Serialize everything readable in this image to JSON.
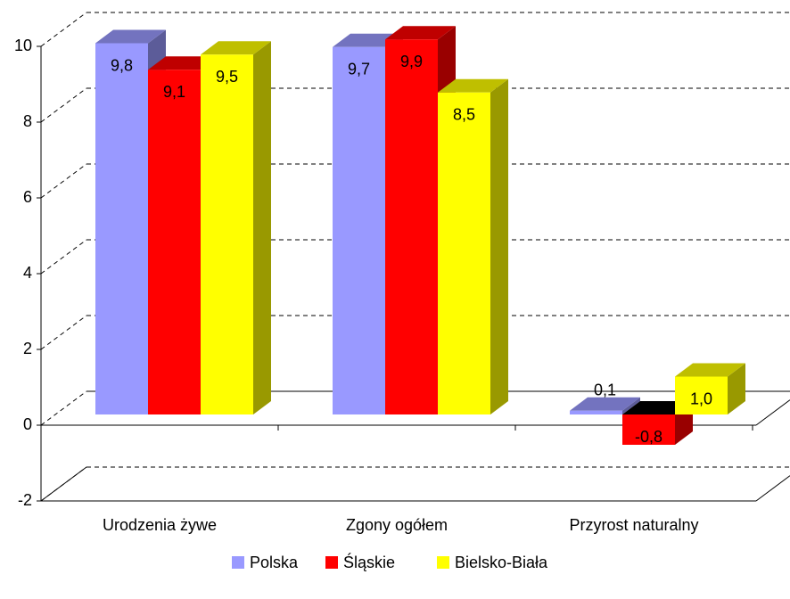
{
  "chart_data": {
    "type": "bar3d",
    "categories": [
      "Urodzenia żywe",
      "Zgony ogółem",
      "Przyrost naturalny"
    ],
    "series": [
      {
        "name": "Polska",
        "color": "#9999ff",
        "values": [
          9.8,
          9.7,
          0.1
        ],
        "value_labels": [
          "9,8",
          "9,7",
          "0,1"
        ]
      },
      {
        "name": "Śląskie",
        "color": "#ff0000",
        "values": [
          9.1,
          9.9,
          -0.8
        ],
        "value_labels": [
          "9,1",
          "9,9",
          "-0,8"
        ]
      },
      {
        "name": "Bielsko-Biała",
        "color": "#ffff00",
        "values": [
          9.5,
          8.5,
          1.0
        ],
        "value_labels": [
          "9,5",
          "8,5",
          "1,0"
        ]
      }
    ],
    "ylim": [
      -2,
      10
    ],
    "yticks": [
      -2,
      0,
      2,
      4,
      6,
      8,
      10
    ],
    "grid": true,
    "legend": "bottom"
  }
}
